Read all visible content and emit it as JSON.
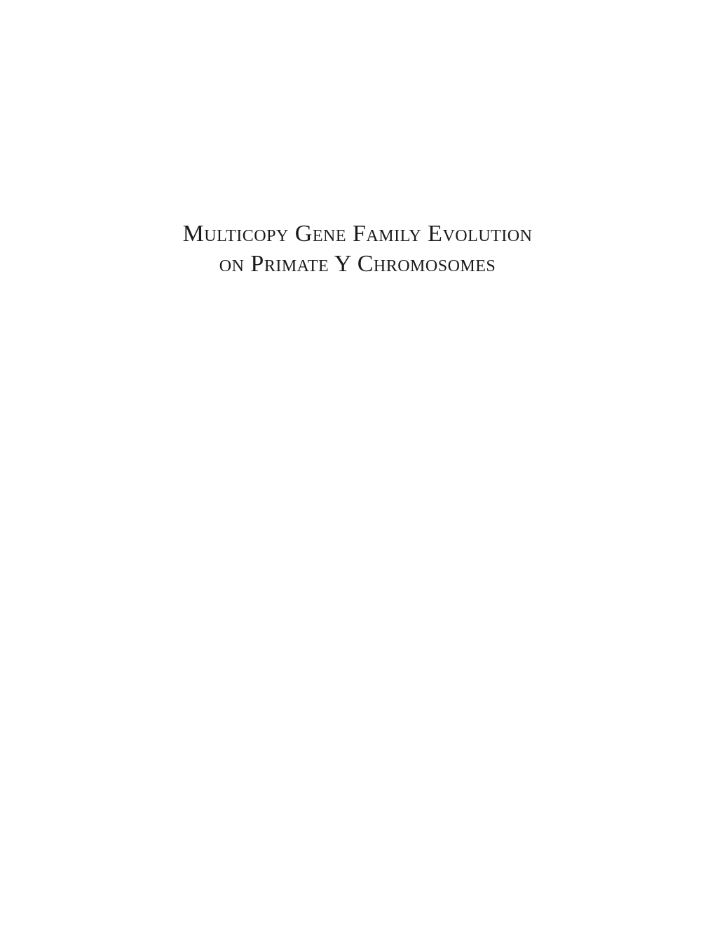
{
  "title": {
    "line1_word1": "Multicopy",
    "line1_word2": "Gene",
    "line1_word3": "Family",
    "line1_word4": "Evolution",
    "line2_word1": "on",
    "line2_word2": "Primate",
    "line2_word3": "Y",
    "line2_word4": "Chromosomes",
    "text_color": "#1a1a1a",
    "font_size": 34,
    "background_color": "#ffffff"
  }
}
